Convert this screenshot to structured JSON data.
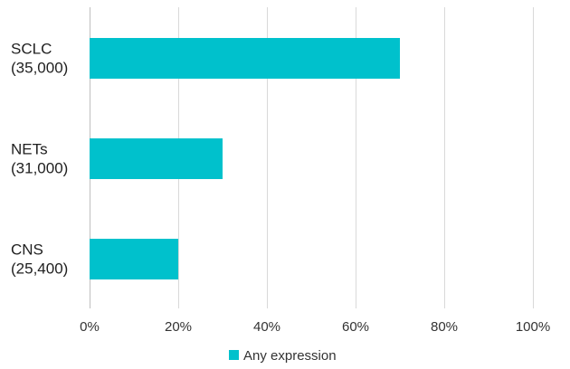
{
  "chart_data": {
    "type": "bar",
    "orientation": "horizontal",
    "categories": [
      [
        "SCLC",
        "(35,000)"
      ],
      [
        "NETs",
        "(31,000)"
      ],
      [
        "CNS",
        "(25,400)"
      ]
    ],
    "series": [
      {
        "name": "Any expression",
        "values": [
          70,
          30,
          20
        ],
        "color": "#00c1cc"
      }
    ],
    "xlim": [
      0,
      100
    ],
    "x_ticks": [
      0,
      20,
      40,
      60,
      80,
      100
    ],
    "x_tick_labels": [
      "0%",
      "20%",
      "40%",
      "60%",
      "80%",
      "100%"
    ],
    "grid": true,
    "legend_position": "bottom"
  }
}
